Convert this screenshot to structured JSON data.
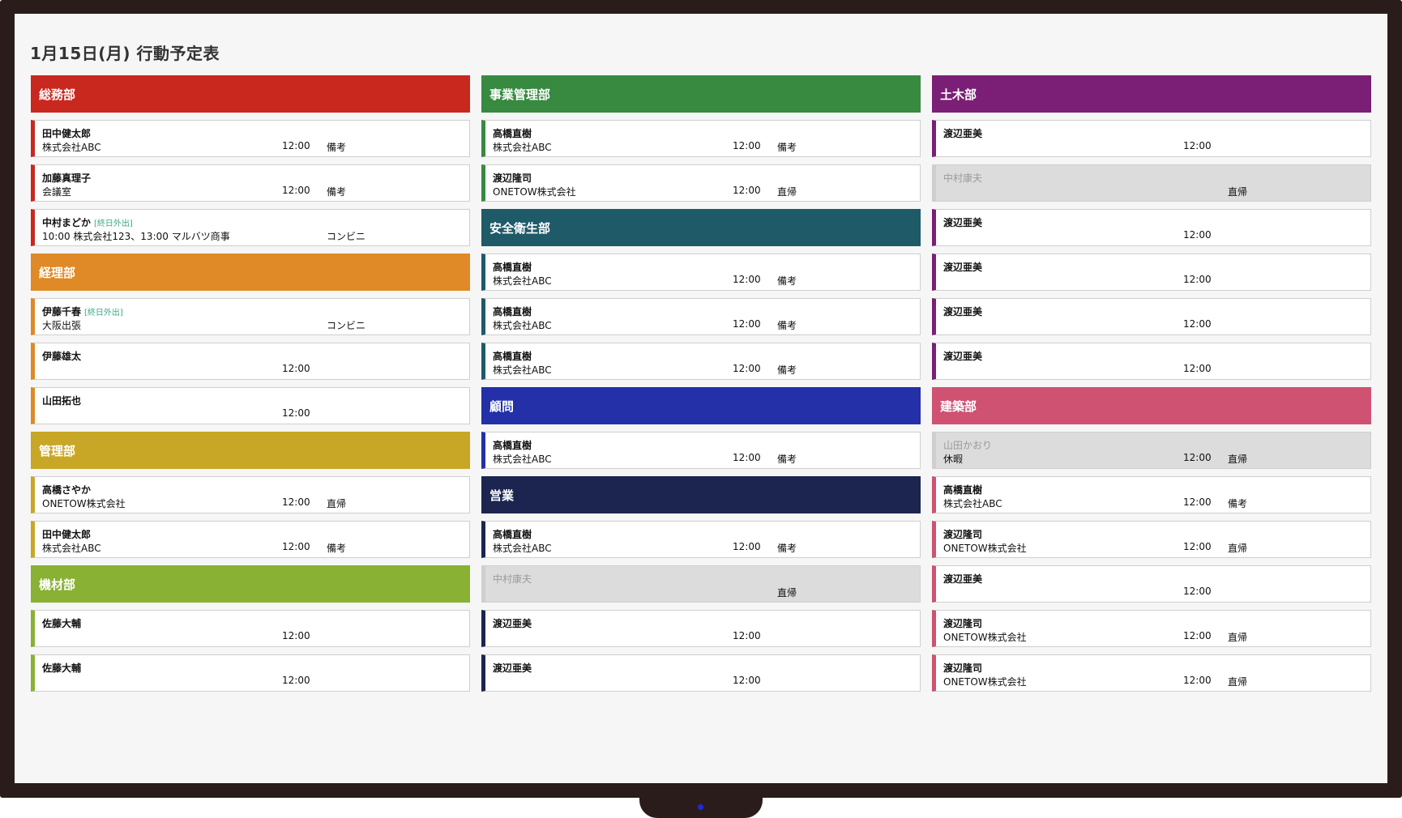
{
  "title": "1月15日(月) 行動予定表",
  "colors": {
    "somu": "#c9281f",
    "keiri": "#df8a26",
    "kanri": "#c9a726",
    "kizai": "#89b133",
    "jigyo": "#378a40",
    "anzen": "#1f5a68",
    "komon": "#2330a8",
    "eigyo": "#1b2550",
    "doboku": "#7a1f75",
    "kenchiku": "#cf5272"
  },
  "columns": [
    {
      "departments": [
        {
          "name": "総務部",
          "color": "#c9281f",
          "members": [
            {
              "name": "田中健太郎",
              "tag": "",
              "place": "株式会社ABC",
              "time": "12:00",
              "note": "備考",
              "absent": false
            },
            {
              "name": "加藤真理子",
              "tag": "",
              "place": "会議室",
              "time": "12:00",
              "note": "備考",
              "absent": false
            },
            {
              "name": "中村まどか",
              "tag": "[終日外出]",
              "place": "10:00 株式会社123、13:00 マルバツ商事",
              "time": "",
              "note": "コンビニ",
              "absent": false
            }
          ]
        },
        {
          "name": "経理部",
          "color": "#df8a26",
          "members": [
            {
              "name": "伊藤千春",
              "tag": "[終日外出]",
              "place": "大阪出張",
              "time": "",
              "note": "コンビニ",
              "absent": false
            },
            {
              "name": "伊藤雄太",
              "tag": "",
              "place": "",
              "time": "12:00",
              "note": "",
              "absent": false
            },
            {
              "name": "山田拓也",
              "tag": "",
              "place": "",
              "time": "12:00",
              "note": "",
              "absent": false
            }
          ]
        },
        {
          "name": "管理部",
          "color": "#c9a726",
          "members": [
            {
              "name": "高橋さやか",
              "tag": "",
              "place": " ONETOW株式会社",
              "time": "12:00",
              "note": "直帰",
              "absent": false
            },
            {
              "name": "田中健太郎",
              "tag": "",
              "place": "株式会社ABC",
              "time": "12:00",
              "note": "備考",
              "absent": false
            }
          ]
        },
        {
          "name": "機材部",
          "color": "#89b133",
          "members": [
            {
              "name": "佐藤大輔",
              "tag": "",
              "place": "",
              "time": "12:00",
              "note": "",
              "absent": false
            },
            {
              "name": "佐藤大輔",
              "tag": "",
              "place": "",
              "time": "12:00",
              "note": "",
              "absent": false
            }
          ]
        }
      ]
    },
    {
      "departments": [
        {
          "name": "事業管理部",
          "color": "#378a40",
          "members": [
            {
              "name": "高橋直樹",
              "tag": "",
              "place": "株式会社ABC",
              "time": "12:00",
              "note": "備考",
              "absent": false
            },
            {
              "name": "渡辺隆司",
              "tag": "",
              "place": " ONETOW株式会社",
              "time": "12:00",
              "note": "直帰",
              "absent": false
            }
          ]
        },
        {
          "name": "安全衛生部",
          "color": "#1f5a68",
          "members": [
            {
              "name": "高橋直樹",
              "tag": "",
              "place": "株式会社ABC",
              "time": "12:00",
              "note": "備考",
              "absent": false
            },
            {
              "name": "高橋直樹",
              "tag": "",
              "place": "株式会社ABC",
              "time": "12:00",
              "note": "備考",
              "absent": false
            },
            {
              "name": "高橋直樹",
              "tag": "",
              "place": "株式会社ABC",
              "time": "12:00",
              "note": "備考",
              "absent": false
            }
          ]
        },
        {
          "name": "顧問",
          "color": "#2330a8",
          "members": [
            {
              "name": "高橋直樹",
              "tag": "",
              "place": "株式会社ABC",
              "time": "12:00",
              "note": "備考",
              "absent": false
            }
          ]
        },
        {
          "name": "営業",
          "color": "#1b2550",
          "members": [
            {
              "name": "高橋直樹",
              "tag": "",
              "place": "株式会社ABC",
              "time": "12:00",
              "note": "備考",
              "absent": false
            },
            {
              "name": "中村康夫",
              "tag": "",
              "place": "",
              "time": "",
              "note": "直帰",
              "absent": true
            },
            {
              "name": "渡辺亜美",
              "tag": "",
              "place": "",
              "time": "12:00",
              "note": "",
              "absent": false
            },
            {
              "name": "渡辺亜美",
              "tag": "",
              "place": "",
              "time": "12:00",
              "note": "",
              "absent": false
            }
          ]
        }
      ]
    },
    {
      "departments": [
        {
          "name": "土木部",
          "color": "#7a1f75",
          "members": [
            {
              "name": "渡辺亜美",
              "tag": "",
              "place": "",
              "time": "12:00",
              "note": "",
              "absent": false
            },
            {
              "name": "中村康夫",
              "tag": "",
              "place": "",
              "time": "",
              "note": "直帰",
              "absent": true
            },
            {
              "name": "渡辺亜美",
              "tag": "",
              "place": "",
              "time": "12:00",
              "note": "",
              "absent": false
            },
            {
              "name": "渡辺亜美",
              "tag": "",
              "place": "",
              "time": "12:00",
              "note": "",
              "absent": false
            },
            {
              "name": "渡辺亜美",
              "tag": "",
              "place": "",
              "time": "12:00",
              "note": "",
              "absent": false
            },
            {
              "name": "渡辺亜美",
              "tag": "",
              "place": "",
              "time": "12:00",
              "note": "",
              "absent": false
            }
          ]
        },
        {
          "name": "建築部",
          "color": "#cf5272",
          "members": [
            {
              "name": "山田かおり",
              "tag": "",
              "place": "休暇",
              "time": "12:00",
              "note": "直帰",
              "absent": true
            },
            {
              "name": "高橋直樹",
              "tag": "",
              "place": "株式会社ABC",
              "time": "12:00",
              "note": "備考",
              "absent": false
            },
            {
              "name": "渡辺隆司",
              "tag": "",
              "place": " ONETOW株式会社",
              "time": "12:00",
              "note": "直帰",
              "absent": false
            },
            {
              "name": "渡辺亜美",
              "tag": "",
              "place": "",
              "time": "12:00",
              "note": "",
              "absent": false
            },
            {
              "name": "渡辺隆司",
              "tag": "",
              "place": " ONETOW株式会社",
              "time": "12:00",
              "note": "直帰",
              "absent": false
            },
            {
              "name": "渡辺隆司",
              "tag": "",
              "place": " ONETOW株式会社",
              "time": "12:00",
              "note": "直帰",
              "absent": false
            }
          ]
        }
      ]
    }
  ]
}
